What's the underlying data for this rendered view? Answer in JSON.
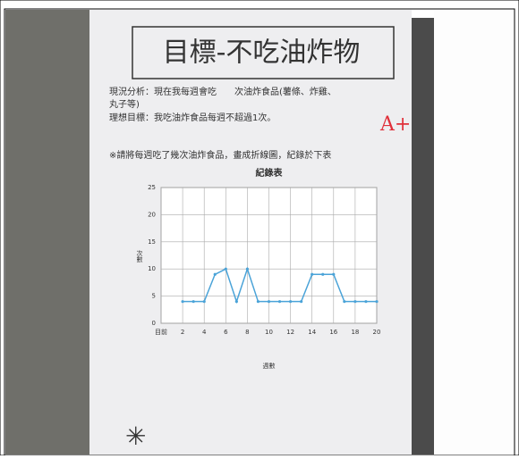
{
  "header": {
    "title": "目標-不吃油炸物",
    "line1": "現況分析：現在我每週會吃　　次油炸食品(薯條、炸雞、",
    "line2": "丸子等)",
    "goal": "理想目標：我吃油炸食品每週不超過1次。",
    "grade": "A+",
    "instruction": "※請將每週吃了幾次油炸食品，畫成折線圖，紀錄於下表"
  },
  "chart_data": {
    "type": "line",
    "title": "紀錄表",
    "y_label": "次數",
    "x_label": "週數",
    "x": [
      2,
      3,
      4,
      5,
      6,
      7,
      8,
      9,
      10,
      11,
      12,
      13,
      14,
      15,
      16,
      17,
      18,
      19,
      20
    ],
    "series": [
      {
        "name": "次數",
        "color": "#4aa3d8",
        "values": [
          4,
          4,
          4,
          9,
          10,
          4,
          10,
          4,
          4,
          4,
          4,
          4,
          9,
          9,
          9,
          4,
          4,
          4,
          4
        ]
      }
    ],
    "xlim": [
      0,
      20
    ],
    "ylim": [
      0,
      25
    ],
    "xticks": [
      {
        "value": 0,
        "label": "目前"
      },
      2,
      4,
      6,
      8,
      10,
      12,
      14,
      16,
      18,
      20
    ],
    "yticks": [
      0,
      5,
      10,
      15,
      20,
      25
    ],
    "grid": true
  }
}
